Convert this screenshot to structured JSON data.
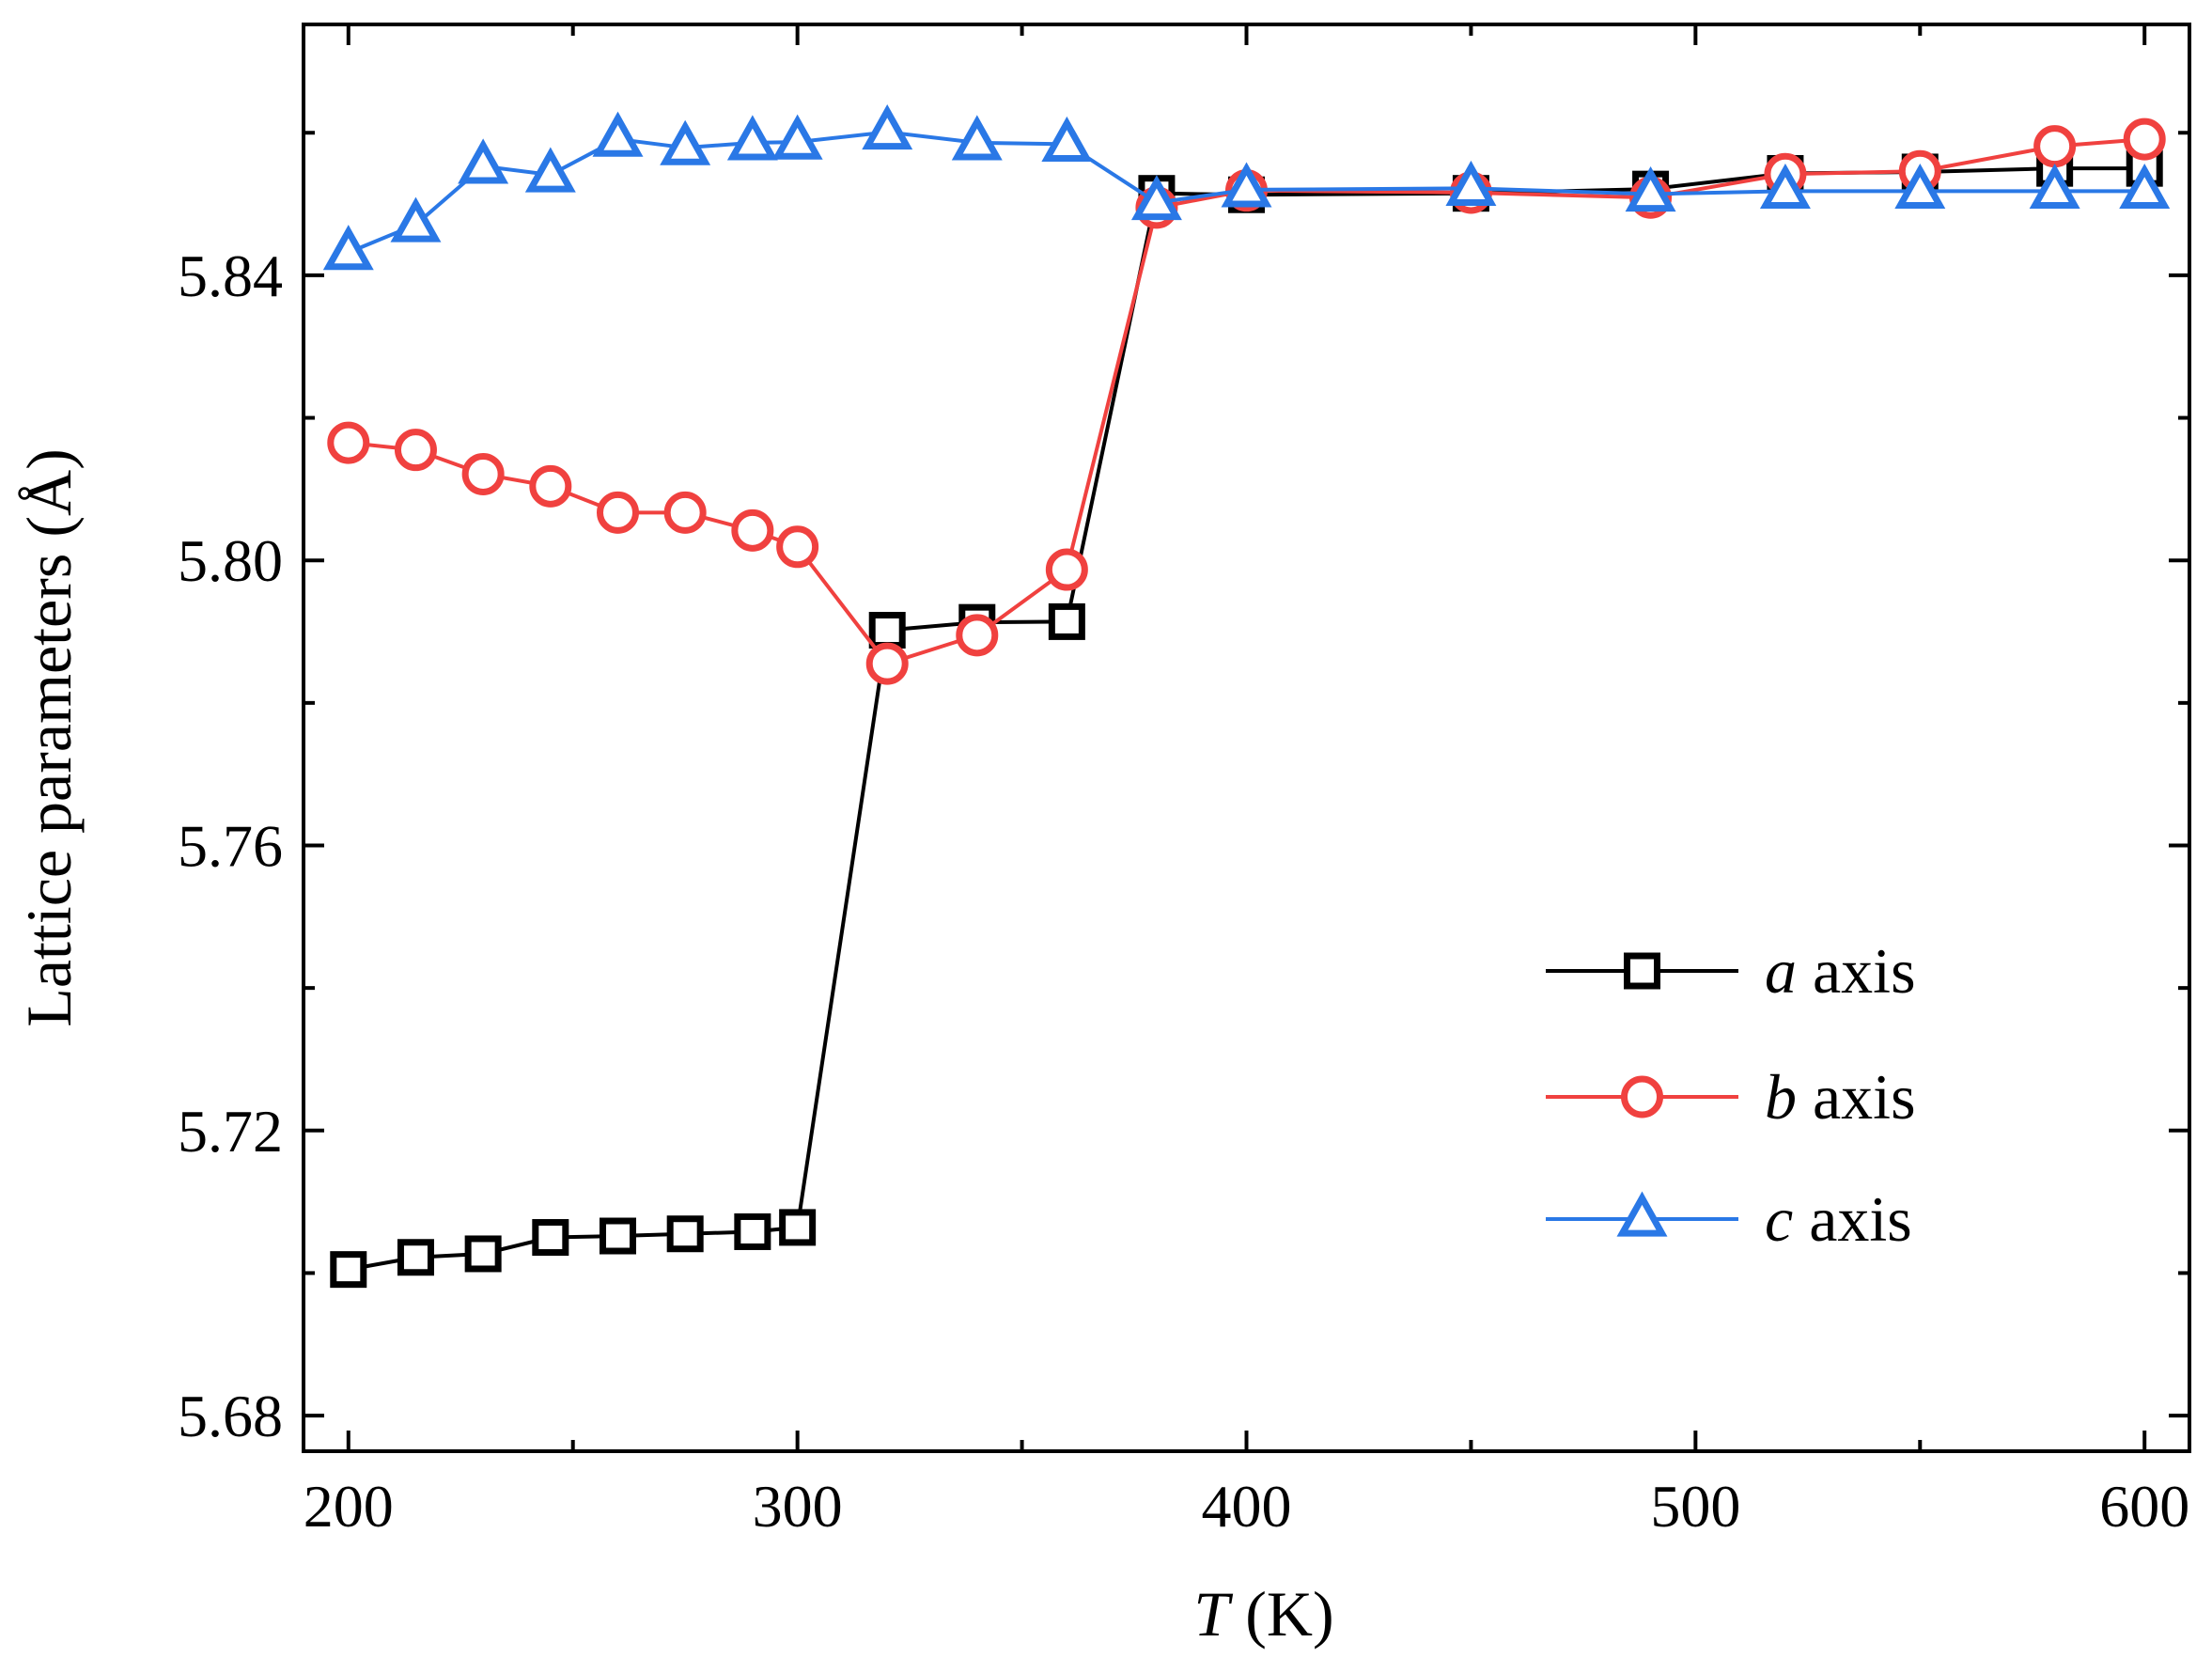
{
  "chart_data": {
    "type": "line",
    "title": "",
    "xlabel_var": "T",
    "xlabel_unit": " (K)",
    "ylabel": "Lattice parameters (Å)",
    "xlim": [
      190,
      610
    ],
    "ylim": [
      5.675,
      5.8752
    ],
    "xticks": [
      200,
      300,
      400,
      500,
      600
    ],
    "xtick_labels": [
      "200",
      "300",
      "400",
      "500",
      "600"
    ],
    "yticks": [
      5.68,
      5.72,
      5.76,
      5.8,
      5.84
    ],
    "ytick_labels": [
      "5.68",
      "5.72",
      "5.76",
      "5.80",
      "5.84"
    ],
    "legend_position": "lower-right",
    "series": [
      {
        "name": "a axis",
        "legend_italic": "a",
        "legend_rest": " axis",
        "marker": "square",
        "color": "#000000",
        "x": [
          200,
          215,
          230,
          245,
          260,
          275,
          290,
          300,
          320,
          340,
          360,
          380,
          400,
          450,
          490,
          520,
          550,
          580,
          600
        ],
        "values": [
          5.7005,
          5.7022,
          5.7027,
          5.705,
          5.7052,
          5.7055,
          5.7058,
          5.7064,
          5.7902,
          5.7913,
          5.7914,
          5.8515,
          5.8513,
          5.8515,
          5.8521,
          5.8543,
          5.8545,
          5.855,
          5.855
        ]
      },
      {
        "name": "b axis",
        "legend_italic": "b",
        "legend_rest": " axis",
        "marker": "circle",
        "color": "#f0413f",
        "x": [
          200,
          215,
          230,
          245,
          260,
          275,
          290,
          300,
          320,
          340,
          360,
          380,
          400,
          450,
          490,
          520,
          550,
          580,
          600
        ],
        "values": [
          5.8165,
          5.8155,
          5.8121,
          5.8104,
          5.8067,
          5.8067,
          5.8042,
          5.8019,
          5.7855,
          5.7895,
          5.7987,
          5.8495,
          5.8519,
          5.8516,
          5.8509,
          5.8542,
          5.8546,
          5.8581,
          5.8591
        ]
      },
      {
        "name": "c axis",
        "legend_italic": "c",
        "legend_rest": " axis",
        "marker": "triangle",
        "color": "#2a78e6",
        "x": [
          200,
          215,
          230,
          245,
          260,
          275,
          290,
          300,
          320,
          340,
          360,
          380,
          400,
          450,
          490,
          520,
          550,
          580,
          600
        ],
        "values": [
          5.8432,
          5.8471,
          5.8553,
          5.8541,
          5.8591,
          5.8579,
          5.8586,
          5.8587,
          5.8601,
          5.8586,
          5.8584,
          5.8502,
          5.852,
          5.8522,
          5.8514,
          5.8518,
          5.8518,
          5.8518,
          5.8518
        ]
      }
    ]
  }
}
